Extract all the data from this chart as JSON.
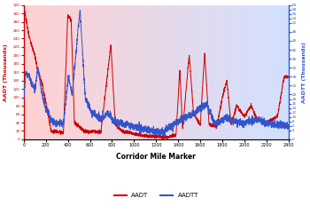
{
  "xlabel": "Corridor Mile Marker",
  "ylabel_left": "AADT (Thousands)",
  "ylabel_right": "AADTT (Thousands)",
  "xlim": [
    0,
    2400
  ],
  "ylim_left": [
    0,
    320
  ],
  "ylim_right": [
    0,
    60
  ],
  "yticks_left": [
    0,
    20,
    40,
    60,
    80,
    100,
    120,
    140,
    160,
    180,
    200,
    220,
    240,
    260,
    280,
    300,
    320
  ],
  "yticks_right": [
    0,
    4,
    6,
    8,
    10,
    12,
    14,
    16,
    18,
    20,
    24,
    28,
    32,
    36,
    40,
    44,
    48,
    52,
    54,
    56,
    58,
    60
  ],
  "xticks": [
    0,
    200,
    400,
    600,
    800,
    1000,
    1200,
    1400,
    1600,
    1800,
    2000,
    2200,
    2400
  ],
  "aadt_color": "#cc0000",
  "aadtt_color": "#3355cc",
  "figsize": [
    3.5,
    2.5
  ],
  "dpi": 100
}
